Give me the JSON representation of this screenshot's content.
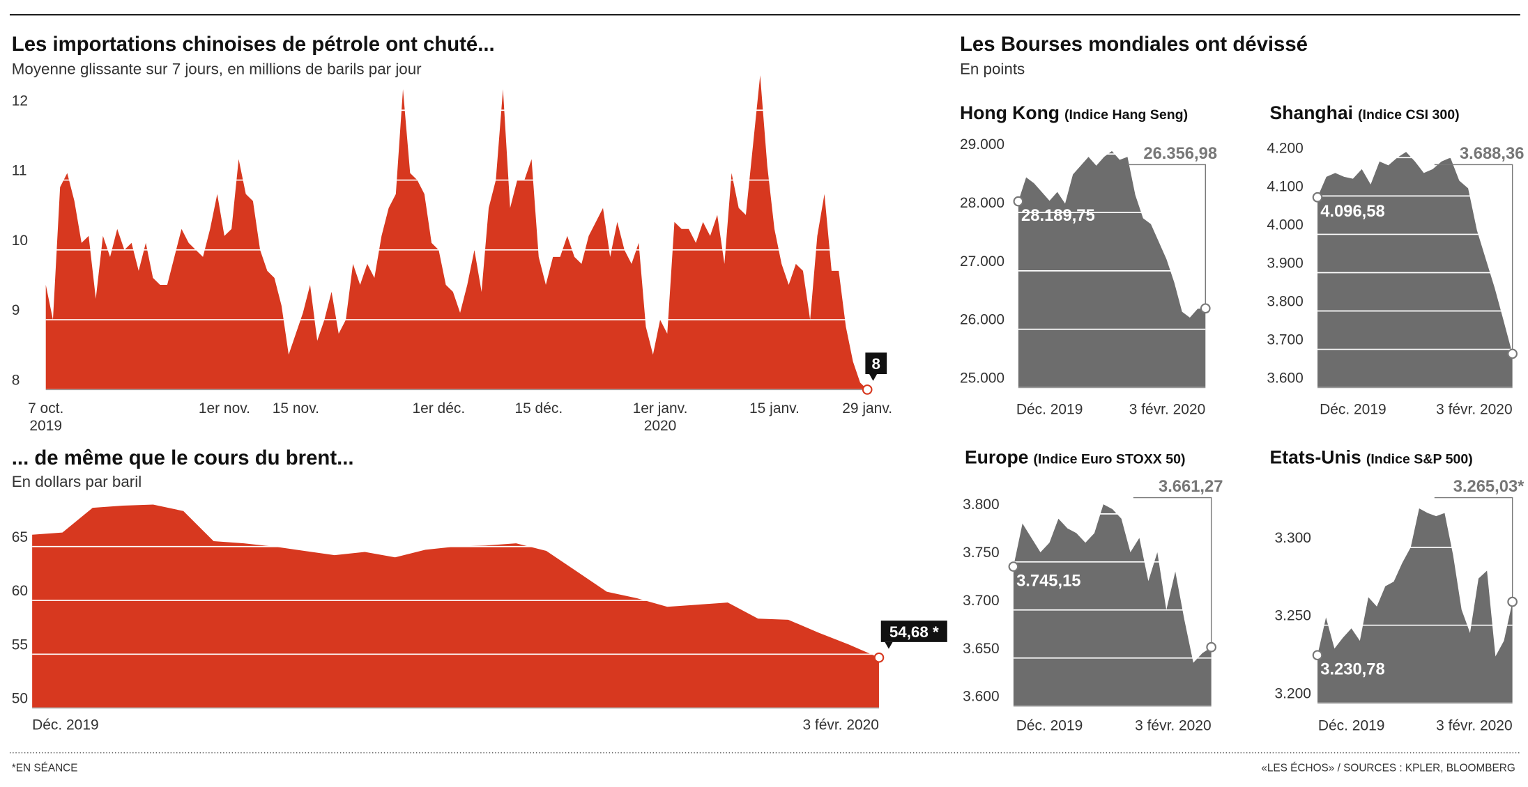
{
  "header": {
    "footnote": "*EN SÉANCE",
    "source": "«LES ÉCHOS» / SOURCES : KPLER, BLOOMBERG",
    "right_title": "Les Bourses mondiales ont dévissé",
    "right_subtitle": "En points"
  },
  "chart_data": [
    {
      "type": "area",
      "title": "Les importations chinoises de pétrole ont chuté...",
      "subtitle": "Moyenne glissante sur 7 jours, en millions de barils par jour",
      "color": "#d7381f",
      "categories": [
        [
          "7 oct.",
          "2019"
        ],
        null,
        null,
        null,
        null,
        null,
        null,
        null,
        null,
        null,
        null,
        null,
        null,
        null,
        null,
        null,
        null,
        null,
        null,
        null,
        null,
        null,
        null,
        null,
        null,
        "1er nov.",
        null,
        null,
        null,
        null,
        null,
        null,
        null,
        null,
        null,
        "15 nov.",
        null,
        null,
        null,
        null,
        null,
        null,
        null,
        null,
        null,
        null,
        null,
        null,
        null,
        null,
        null,
        null,
        null,
        null,
        null,
        "1er déc.",
        null,
        null,
        null,
        null,
        null,
        null,
        null,
        null,
        null,
        null,
        null,
        null,
        null,
        "15 déc.",
        null,
        null,
        null,
        null,
        null,
        null,
        null,
        null,
        null,
        null,
        null,
        null,
        null,
        null,
        null,
        null,
        [
          "1er janv.",
          "2020"
        ],
        null,
        null,
        null,
        null,
        null,
        null,
        null,
        null,
        null,
        null,
        null,
        null,
        null,
        null,
        null,
        "15 janv.",
        null,
        null,
        null,
        null,
        null,
        null,
        null,
        null,
        null,
        null,
        null,
        null,
        "29 janv."
      ],
      "values": [
        9.5,
        9.0,
        10.9,
        11.1,
        10.7,
        10.1,
        10.2,
        9.3,
        10.2,
        9.9,
        10.3,
        10.0,
        10.1,
        9.7,
        10.1,
        9.6,
        9.5,
        9.5,
        9.9,
        10.3,
        10.1,
        10.0,
        9.9,
        10.3,
        10.8,
        10.2,
        10.3,
        11.3,
        10.8,
        10.7,
        10.0,
        9.7,
        9.6,
        9.2,
        8.5,
        8.8,
        9.1,
        9.5,
        8.7,
        9.0,
        9.4,
        8.8,
        9.0,
        9.8,
        9.5,
        9.8,
        9.6,
        10.2,
        10.6,
        10.8,
        12.3,
        11.1,
        11.0,
        10.8,
        10.1,
        10.0,
        9.5,
        9.4,
        9.1,
        9.5,
        10.0,
        9.4,
        10.6,
        11.0,
        12.3,
        10.6,
        11.0,
        11.0,
        11.3,
        9.9,
        9.5,
        9.9,
        9.9,
        10.2,
        9.9,
        9.8,
        10.2,
        10.4,
        10.6,
        9.9,
        10.4,
        10.0,
        9.8,
        10.1,
        8.9,
        8.5,
        9.0,
        8.8,
        10.4,
        10.3,
        10.3,
        10.1,
        10.4,
        10.2,
        10.5,
        9.8,
        11.1,
        10.6,
        10.5,
        11.5,
        12.5,
        11.2,
        10.3,
        9.8,
        9.5,
        9.8,
        9.7,
        9.0,
        10.2,
        10.8,
        9.7,
        9.7,
        8.9,
        8.4,
        8.1,
        8
      ],
      "ylim": [
        8,
        12.6
      ],
      "yticks": [
        8,
        9,
        10,
        11,
        12
      ],
      "grid": true
    },
    {
      "type": "area",
      "title": "... de même que le cours du brent...",
      "subtitle": "En dollars par baril",
      "color": "#d7381f",
      "categories": [
        "Déc. 2019",
        null,
        null,
        null,
        null,
        null,
        null,
        null,
        null,
        null,
        null,
        null,
        null,
        null,
        null,
        null,
        null,
        null,
        null,
        null,
        null,
        null,
        null,
        null,
        null,
        null,
        null,
        null,
        "3 févr. 2020"
      ],
      "values": [
        66.1,
        66.3,
        68.6,
        68.8,
        68.9,
        68.3,
        65.5,
        65.3,
        65.0,
        64.6,
        64.2,
        64.5,
        64.0,
        64.7,
        65.0,
        65.1,
        65.3,
        64.6,
        62.7,
        60.8,
        60.2,
        59.4,
        59.6,
        59.8,
        58.3,
        58.2,
        57.0,
        55.9,
        54.68
      ],
      "end_label": "54,68 *",
      "ylim": [
        50,
        69
      ],
      "yticks": [
        50,
        55,
        60,
        65
      ],
      "grid": true
    },
    {
      "type": "area",
      "title": "Hong Kong",
      "subtitle": "(Indice Hang Seng)",
      "color": "#6d6d6d",
      "categories": [
        null,
        null,
        null,
        null,
        "Déc. 2019",
        null,
        null,
        null,
        null,
        null,
        null,
        null,
        null,
        null,
        null,
        null,
        null,
        null,
        null,
        null,
        null,
        null,
        null,
        null,
        "3 févr. 2020"
      ],
      "values": [
        28189.75,
        28600,
        28500,
        28350,
        28200,
        28350,
        28150,
        28650,
        28800,
        28950,
        28800,
        28950,
        29050,
        28900,
        28950,
        28300,
        27900,
        27800,
        27500,
        27200,
        26800,
        26300,
        26200,
        26350,
        26356.98
      ],
      "start_label": "28.189,75",
      "end_label": "26.356,98",
      "ylim": [
        25000,
        29300
      ],
      "yticks": [
        {
          "value": 25000,
          "label": "25.000"
        },
        {
          "value": 26000,
          "label": "26.000"
        },
        {
          "value": 27000,
          "label": "27.000"
        },
        {
          "value": 28000,
          "label": "28.000"
        },
        {
          "value": 29000,
          "label": "29.000"
        }
      ],
      "grid": true
    },
    {
      "type": "area",
      "title": "Shanghai",
      "subtitle": "(Indice CSI 300)",
      "color": "#6d6d6d",
      "categories": [
        null,
        null,
        null,
        null,
        "Déc. 2019",
        null,
        null,
        null,
        null,
        null,
        null,
        null,
        null,
        null,
        null,
        null,
        null,
        null,
        null,
        null,
        null,
        null,
        "3 févr. 2020"
      ],
      "values": [
        4096.58,
        4150,
        4160,
        4150,
        4145,
        4170,
        4130,
        4190,
        4180,
        4200,
        4215,
        4190,
        4160,
        4170,
        4190,
        4200,
        4140,
        4120,
        4010,
        3935,
        3860,
        3775,
        3688.36
      ],
      "start_label": "4.096,58",
      "end_label": "3.688,36",
      "ylim": [
        3600,
        4240
      ],
      "yticks": [
        {
          "value": 3600,
          "label": "3.600"
        },
        {
          "value": 3700,
          "label": "3.700"
        },
        {
          "value": 3800,
          "label": "3.800"
        },
        {
          "value": 3900,
          "label": "3.900"
        },
        {
          "value": 4000,
          "label": "4.000"
        },
        {
          "value": 4100,
          "label": "4.100"
        },
        {
          "value": 4200,
          "label": "4.200"
        }
      ],
      "grid": true
    },
    {
      "type": "area",
      "title": "Europe",
      "subtitle": "(Indice Euro STOXX 50)",
      "color": "#6d6d6d",
      "categories": [
        null,
        null,
        null,
        null,
        "Déc. 2019",
        null,
        null,
        null,
        null,
        null,
        null,
        null,
        null,
        null,
        null,
        null,
        null,
        null,
        null,
        null,
        null,
        null,
        "3 févr. 2020"
      ],
      "values": [
        3745.15,
        3790,
        3775,
        3760,
        3770,
        3795,
        3785,
        3780,
        3770,
        3780,
        3810,
        3805,
        3795,
        3760,
        3775,
        3730,
        3760,
        3700,
        3740,
        3690,
        3645,
        3655,
        3661.27
      ],
      "start_label": "3.745,15",
      "end_label": "3.661,27",
      "ylim": [
        3600,
        3825
      ],
      "yticks": [
        {
          "value": 3600,
          "label": "3.600"
        },
        {
          "value": 3650,
          "label": "3.650"
        },
        {
          "value": 3700,
          "label": "3.700"
        },
        {
          "value": 3750,
          "label": "3.750"
        },
        {
          "value": 3800,
          "label": "3.800"
        }
      ],
      "grid": true
    },
    {
      "type": "area",
      "title": "Etats-Unis",
      "subtitle": "(Indice S&P 500)",
      "color": "#6d6d6d",
      "categories": [
        null,
        null,
        null,
        null,
        "Déc. 2019",
        null,
        null,
        null,
        null,
        null,
        null,
        null,
        null,
        null,
        null,
        null,
        null,
        null,
        null,
        null,
        null,
        null,
        null,
        "3 févr. 2020"
      ],
      "values": [
        3230.78,
        3255,
        3235,
        3242,
        3248,
        3240,
        3268,
        3262,
        3275,
        3278,
        3290,
        3300,
        3325,
        3322,
        3320,
        3322,
        3295,
        3260,
        3245,
        3280,
        3285,
        3230,
        3240,
        3265.03
      ],
      "start_label": "3.230,78",
      "end_label": "3.265,03*",
      "ylim": [
        3200,
        3335
      ],
      "yticks": [
        {
          "value": 3200,
          "label": "3.200"
        },
        {
          "value": 3250,
          "label": "3.250"
        },
        {
          "value": 3300,
          "label": "3.300"
        }
      ],
      "grid": true
    }
  ]
}
